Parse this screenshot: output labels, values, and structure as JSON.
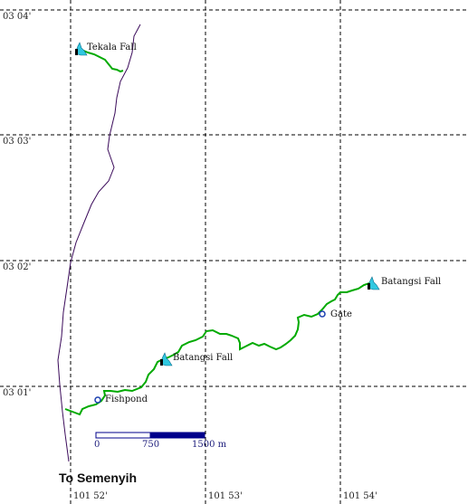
{
  "map": {
    "latitude_labels": [
      "03 04'",
      "03 03'",
      "03 02'",
      "03 01'"
    ],
    "longitude_labels": [
      "101 52'",
      "101 53'",
      "101 54'"
    ],
    "places": {
      "tekala_fall": "Tekala Fall",
      "batangsi_fall_east": "Batangsi Fall",
      "gate": "Gate",
      "batangsi_fall_west": "Batangsi Fall",
      "fishpond": "Fishpond"
    },
    "direction_text": "To Semenyih",
    "scale_bar": {
      "labels": [
        "0",
        "750",
        "1500 m"
      ],
      "colors": {
        "light": "#ffffff",
        "dark": "#00008b"
      }
    },
    "colors": {
      "trail": "#00aa00",
      "road": "#3a0a5a",
      "grid": "#000000",
      "waterfall": "#30c8e0",
      "poi_marker": "#1a3fb0"
    },
    "icons": {
      "waterfall": "waterfall-icon",
      "poi": "circle-marker-icon"
    }
  }
}
